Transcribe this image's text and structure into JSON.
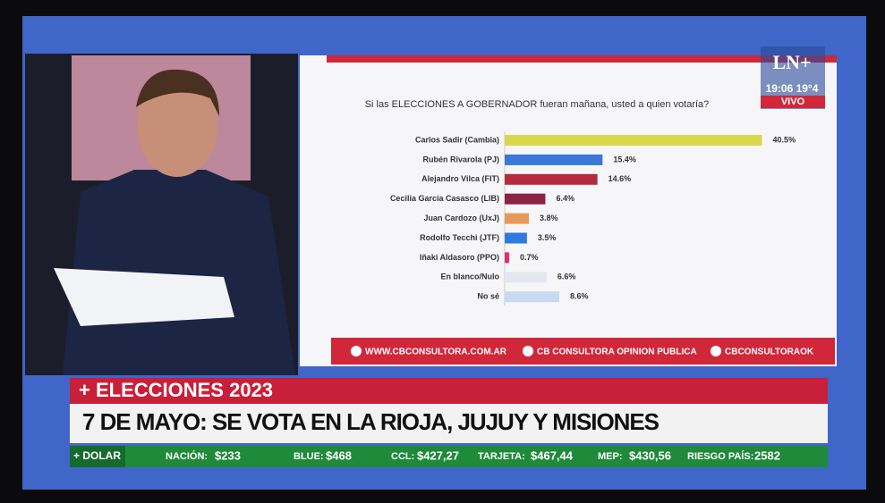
{
  "chart_data": {
    "type": "hbar",
    "title": "Si las ELECCIONES A GOBERNADOR fueran mañana, usted a quien votaría?",
    "categories": [
      "Carlos Sadir (Cambia)",
      "Rubén Rivarola (PJ)",
      "Alejandro Vilca (FIT)",
      "Cecilia García Casasco (LIB)",
      "Juan Cardozo (UxJ)",
      "Rodolfo Tecchi (JTF)",
      "Iñaki Aldasoro (PPO)",
      "En blanco/Nulo",
      "No sé"
    ],
    "values": [
      40.5,
      15.4,
      14.6,
      6.4,
      3.8,
      3.5,
      0.7,
      6.6,
      8.6
    ],
    "value_labels": [
      "40.5%",
      "15.4%",
      "14.6%",
      "6.4%",
      "3.8%",
      "3.5%",
      "0.7%",
      "6.6%",
      "8.6%"
    ],
    "colors": [
      "#d9d84c",
      "#3b78d6",
      "#b32b3c",
      "#8c2344",
      "#e59a5c",
      "#2f7ae0",
      "#e0306a",
      "#e3e8ef",
      "#c9d9ef"
    ],
    "footer": [
      "WWW.CBCONSULTORA.COM.AR",
      "CB CONSULTORA OPINION PUBLICA",
      "CBCONSULTORAOK"
    ]
  },
  "broadcast": {
    "logo": "LN+",
    "clock": "19:06 19°4",
    "live": "VIVO",
    "section": "+ ELECCIONES 2023",
    "headline": "7 DE MAYO: SE VOTA EN LA RIOJA, JUJUY Y MISIONES",
    "ticker_title": "+ DOLAR",
    "ticker": [
      {
        "label": "NACIÓN:",
        "value": "$233"
      },
      {
        "label": "BLUE:",
        "value": "$468"
      },
      {
        "label": "CCL:",
        "value": "$427,27"
      },
      {
        "label": "TARJETA:",
        "value": "$467,44"
      },
      {
        "label": "MEP:",
        "value": "$430,56"
      },
      {
        "label": "RIESGO PAÍS:",
        "value": "2582"
      }
    ]
  }
}
